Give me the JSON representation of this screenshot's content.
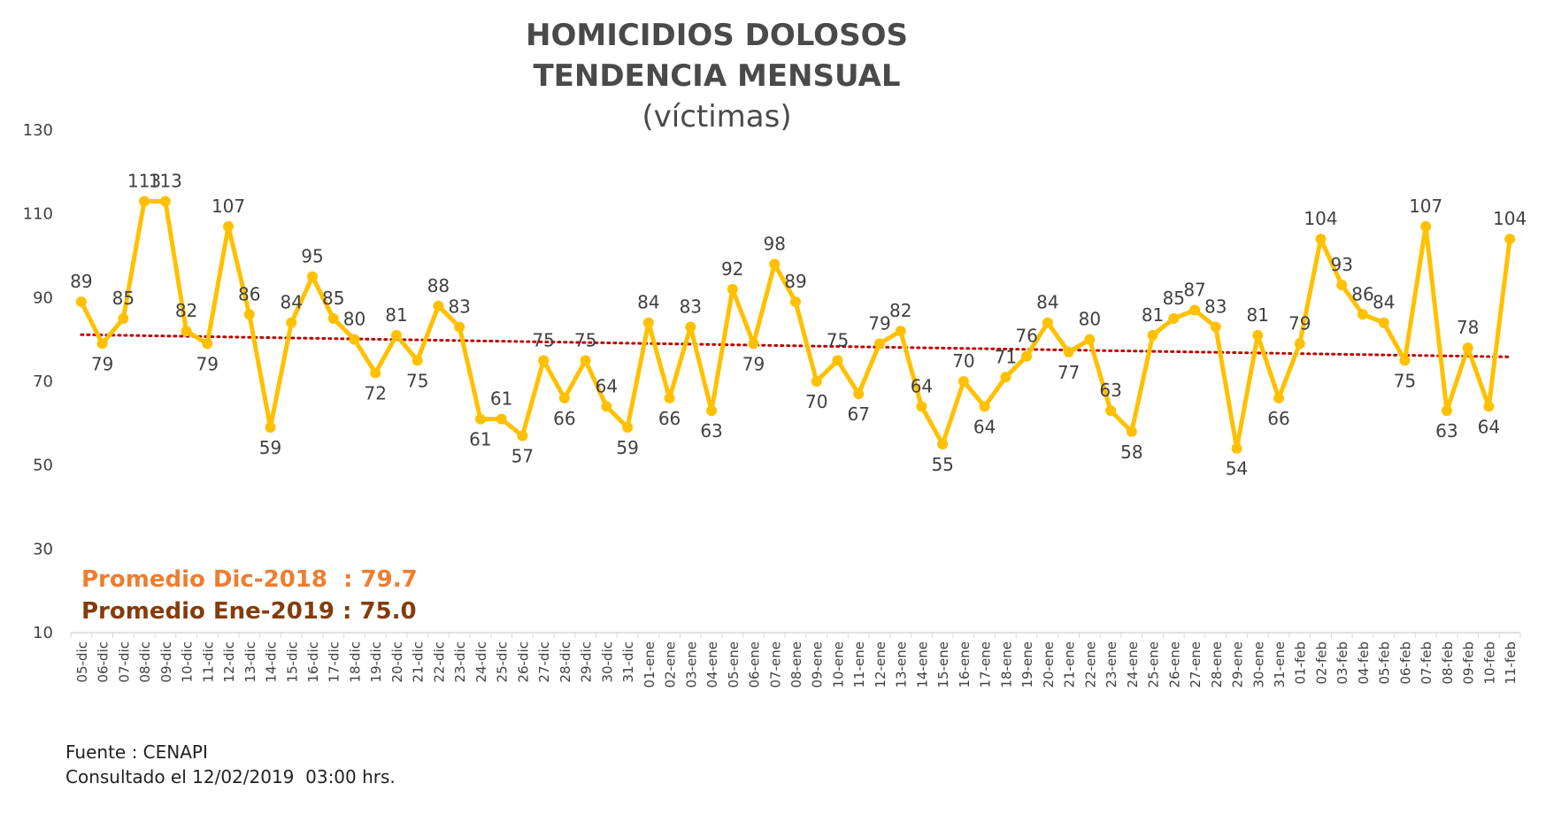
{
  "title_line1": "HOMICIDIOS DOLOSOS",
  "title_line2": "TENDENCIA MENSUAL",
  "title_line3": "(víctimas)",
  "averages": {
    "dic": "Promedio Dic-2018  : 79.7",
    "ene": "Promedio Ene-2019 : 75.0"
  },
  "source": {
    "line1": "Fuente : CENAPI",
    "line2": "Consultado el 12/02/2019  03:00 hrs."
  },
  "colors": {
    "series": "#ffc000",
    "trend": "#c00000",
    "avg_dic": "#ed7d31",
    "avg_ene": "#843c0c",
    "text": "#404040",
    "axis": "#d9d9d9"
  },
  "chart_data": {
    "type": "line",
    "title": "HOMICIDIOS DOLOSOS TENDENCIA MENSUAL",
    "subtitle": "(víctimas)",
    "xlabel": "",
    "ylabel": "",
    "ylim": [
      10,
      130
    ],
    "yticks": [
      10,
      30,
      50,
      70,
      90,
      110,
      130
    ],
    "grid": false,
    "legend": "none",
    "trendline": {
      "type": "linear",
      "style": "dotted"
    },
    "categories": [
      "05-dic",
      "06-dic",
      "07-dic",
      "08-dic",
      "09-dic",
      "10-dic",
      "11-dic",
      "12-dic",
      "13-dic",
      "14-dic",
      "15-dic",
      "16-dic",
      "17-dic",
      "18-dic",
      "19-dic",
      "20-dic",
      "21-dic",
      "22-dic",
      "23-dic",
      "24-dic",
      "25-dic",
      "26-dic",
      "27-dic",
      "28-dic",
      "29-dic",
      "30-dic",
      "31-dic",
      "01-ene",
      "02-ene",
      "03-ene",
      "04-ene",
      "05-ene",
      "06-ene",
      "07-ene",
      "08-ene",
      "09-ene",
      "10-ene",
      "11-ene",
      "12-ene",
      "13-ene",
      "14-ene",
      "15-ene",
      "16-ene",
      "17-ene",
      "18-ene",
      "19-ene",
      "20-ene",
      "21-ene",
      "22-ene",
      "23-ene",
      "24-ene",
      "25-ene",
      "26-ene",
      "27-ene",
      "28-ene",
      "29-ene",
      "30-ene",
      "31-ene",
      "01-feb",
      "02-feb",
      "03-feb",
      "04-feb",
      "05-feb",
      "06-feb",
      "07-feb",
      "08-feb",
      "09-feb",
      "10-feb",
      "11-feb"
    ],
    "values": [
      89,
      79,
      85,
      113,
      113,
      82,
      79,
      107,
      86,
      59,
      84,
      95,
      85,
      80,
      72,
      81,
      75,
      88,
      83,
      61,
      61,
      57,
      75,
      66,
      75,
      64,
      59,
      84,
      66,
      83,
      63,
      92,
      79,
      98,
      89,
      70,
      75,
      67,
      79,
      82,
      64,
      55,
      70,
      64,
      71,
      76,
      84,
      77,
      80,
      63,
      58,
      81,
      85,
      87,
      83,
      54,
      81,
      66,
      79,
      104,
      93,
      86,
      84,
      75,
      107,
      63,
      78,
      64,
      104
    ]
  }
}
